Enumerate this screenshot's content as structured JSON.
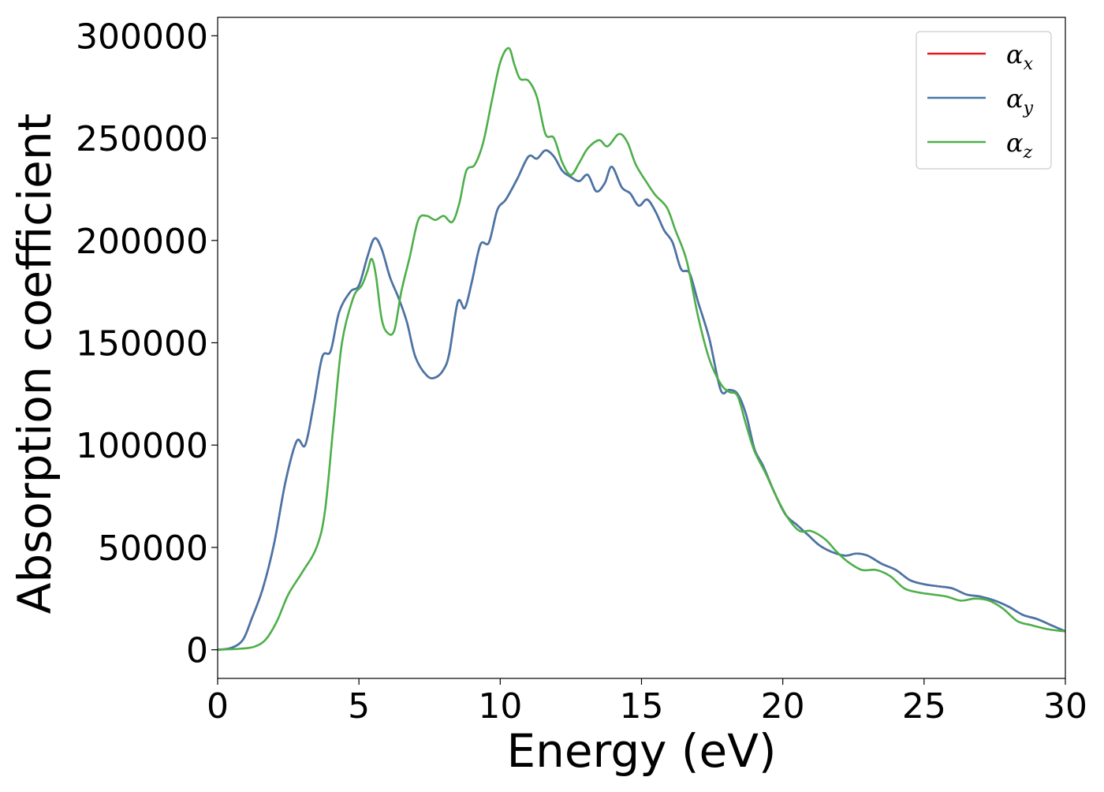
{
  "chart_data": {
    "type": "line",
    "title": "",
    "xlabel": "Energy (eV)",
    "ylabel": "Absorption coefficient",
    "xlim": [
      0,
      30
    ],
    "ylim": [
      -14000,
      309000
    ],
    "xticks": [
      0,
      5,
      10,
      15,
      20,
      25,
      30
    ],
    "yticks": [
      0,
      50000,
      100000,
      150000,
      200000,
      250000,
      300000
    ],
    "grid": false,
    "legend_position": "top-right",
    "series": [
      {
        "name": "αx",
        "legend_base": "α",
        "legend_sub": "x",
        "color": "#e41a1c",
        "x": [
          0,
          0.5,
          0.9,
          1.2,
          1.6,
          2.0,
          2.4,
          2.8,
          3.1,
          3.4,
          3.7,
          4.0,
          4.3,
          4.7,
          5.0,
          5.3,
          5.55,
          5.8,
          6.1,
          6.4,
          6.7,
          7.0,
          7.4,
          7.7,
          8.0,
          8.2,
          8.5,
          8.75,
          9.0,
          9.3,
          9.6,
          9.9,
          10.2,
          10.6,
          11.0,
          11.3,
          11.6,
          11.9,
          12.2,
          12.5,
          12.8,
          13.1,
          13.4,
          13.7,
          13.95,
          14.3,
          14.6,
          14.9,
          15.2,
          15.5,
          15.8,
          16.1,
          16.4,
          16.7,
          17.0,
          17.4,
          17.8,
          18.1,
          18.4,
          18.7,
          19.0,
          19.3,
          19.7,
          20.1,
          20.5,
          20.9,
          21.3,
          21.7,
          22.2,
          22.6,
          23.0,
          23.5,
          24.0,
          24.5,
          25.0,
          25.5,
          26.0,
          26.5,
          27.0,
          27.5,
          28.0,
          28.5,
          29.0,
          29.5,
          30.0
        ],
        "values": [
          0,
          1000,
          5000,
          15000,
          30000,
          52000,
          82000,
          102000,
          100000,
          120000,
          143000,
          146000,
          165000,
          175000,
          178000,
          192000,
          201000,
          196000,
          182000,
          172000,
          160000,
          143000,
          134000,
          133000,
          137000,
          145000,
          170000,
          167000,
          180000,
          198000,
          199000,
          215000,
          220000,
          230000,
          241000,
          240000,
          244000,
          241000,
          234000,
          231000,
          229000,
          232000,
          224000,
          228000,
          236000,
          226000,
          223000,
          217000,
          220000,
          214000,
          205000,
          199000,
          186000,
          184000,
          170000,
          152000,
          127000,
          127000,
          125000,
          115000,
          98000,
          90000,
          77000,
          66000,
          61000,
          56000,
          51000,
          48000,
          46000,
          47000,
          46000,
          42000,
          39000,
          34000,
          32000,
          31000,
          30000,
          27000,
          26000,
          24000,
          21000,
          17000,
          15000,
          12000,
          9000
        ]
      },
      {
        "name": "αy",
        "legend_base": "α",
        "legend_sub": "y",
        "color": "#4477aa",
        "x": [
          0,
          0.5,
          0.9,
          1.2,
          1.6,
          2.0,
          2.4,
          2.8,
          3.1,
          3.4,
          3.7,
          4.0,
          4.3,
          4.7,
          5.0,
          5.3,
          5.55,
          5.8,
          6.1,
          6.4,
          6.7,
          7.0,
          7.4,
          7.7,
          8.0,
          8.2,
          8.5,
          8.75,
          9.0,
          9.3,
          9.6,
          9.9,
          10.2,
          10.6,
          11.0,
          11.3,
          11.6,
          11.9,
          12.2,
          12.5,
          12.8,
          13.1,
          13.4,
          13.7,
          13.95,
          14.3,
          14.6,
          14.9,
          15.2,
          15.5,
          15.8,
          16.1,
          16.4,
          16.7,
          17.0,
          17.4,
          17.8,
          18.1,
          18.4,
          18.7,
          19.0,
          19.3,
          19.7,
          20.1,
          20.5,
          20.9,
          21.3,
          21.7,
          22.2,
          22.6,
          23.0,
          23.5,
          24.0,
          24.5,
          25.0,
          25.5,
          26.0,
          26.5,
          27.0,
          27.5,
          28.0,
          28.5,
          29.0,
          29.5,
          30.0
        ],
        "values": [
          0,
          1000,
          5000,
          15000,
          30000,
          52000,
          82000,
          102000,
          100000,
          120000,
          143000,
          146000,
          165000,
          175000,
          178000,
          192000,
          201000,
          196000,
          182000,
          172000,
          160000,
          143000,
          134000,
          133000,
          137000,
          145000,
          170000,
          167000,
          180000,
          198000,
          199000,
          215000,
          220000,
          230000,
          241000,
          240000,
          244000,
          241000,
          234000,
          231000,
          229000,
          232000,
          224000,
          228000,
          236000,
          226000,
          223000,
          217000,
          220000,
          214000,
          205000,
          199000,
          186000,
          184000,
          170000,
          152000,
          127000,
          127000,
          125000,
          115000,
          98000,
          90000,
          77000,
          66000,
          61000,
          56000,
          51000,
          48000,
          46000,
          47000,
          46000,
          42000,
          39000,
          34000,
          32000,
          31000,
          30000,
          27000,
          26000,
          24000,
          21000,
          17000,
          15000,
          12000,
          9000
        ]
      },
      {
        "name": "αz",
        "legend_base": "α",
        "legend_sub": "z",
        "color": "#4daf4a",
        "x": [
          0,
          0.8,
          1.3,
          1.7,
          2.1,
          2.5,
          3.0,
          3.5,
          3.8,
          4.1,
          4.4,
          4.8,
          5.1,
          5.3,
          5.45,
          5.6,
          5.8,
          6.0,
          6.25,
          6.5,
          6.8,
          7.1,
          7.4,
          7.7,
          8.0,
          8.3,
          8.55,
          8.8,
          9.1,
          9.4,
          9.7,
          10.0,
          10.3,
          10.5,
          10.7,
          11.0,
          11.3,
          11.6,
          11.9,
          12.2,
          12.5,
          12.8,
          13.1,
          13.5,
          13.8,
          14.2,
          14.5,
          14.8,
          15.2,
          15.5,
          15.9,
          16.2,
          16.6,
          17.0,
          17.4,
          17.8,
          18.1,
          18.4,
          18.7,
          19.0,
          19.4,
          19.8,
          20.2,
          20.6,
          21.0,
          21.5,
          21.9,
          22.3,
          22.8,
          23.3,
          23.8,
          24.3,
          24.8,
          25.3,
          25.8,
          26.3,
          26.8,
          27.3,
          27.8,
          28.3,
          28.8,
          29.4,
          30.0
        ],
        "values": [
          0,
          500,
          1500,
          5000,
          14000,
          27000,
          38000,
          50000,
          68000,
          110000,
          150000,
          172000,
          178000,
          185000,
          191000,
          183000,
          162000,
          155000,
          156000,
          175000,
          192000,
          210000,
          212000,
          210000,
          212000,
          209000,
          218000,
          234000,
          237000,
          248000,
          268000,
          287000,
          294000,
          286000,
          279000,
          278000,
          270000,
          252000,
          250000,
          238000,
          232000,
          238000,
          245000,
          249000,
          246000,
          252000,
          248000,
          237000,
          228000,
          222000,
          216000,
          205000,
          190000,
          163000,
          142000,
          130000,
          126000,
          124000,
          110000,
          97000,
          86000,
          74000,
          64000,
          58000,
          58000,
          54000,
          48000,
          43000,
          39000,
          39000,
          36000,
          30000,
          28000,
          27000,
          26000,
          24000,
          25000,
          24000,
          20000,
          14000,
          12000,
          10000,
          9000
        ]
      }
    ]
  }
}
